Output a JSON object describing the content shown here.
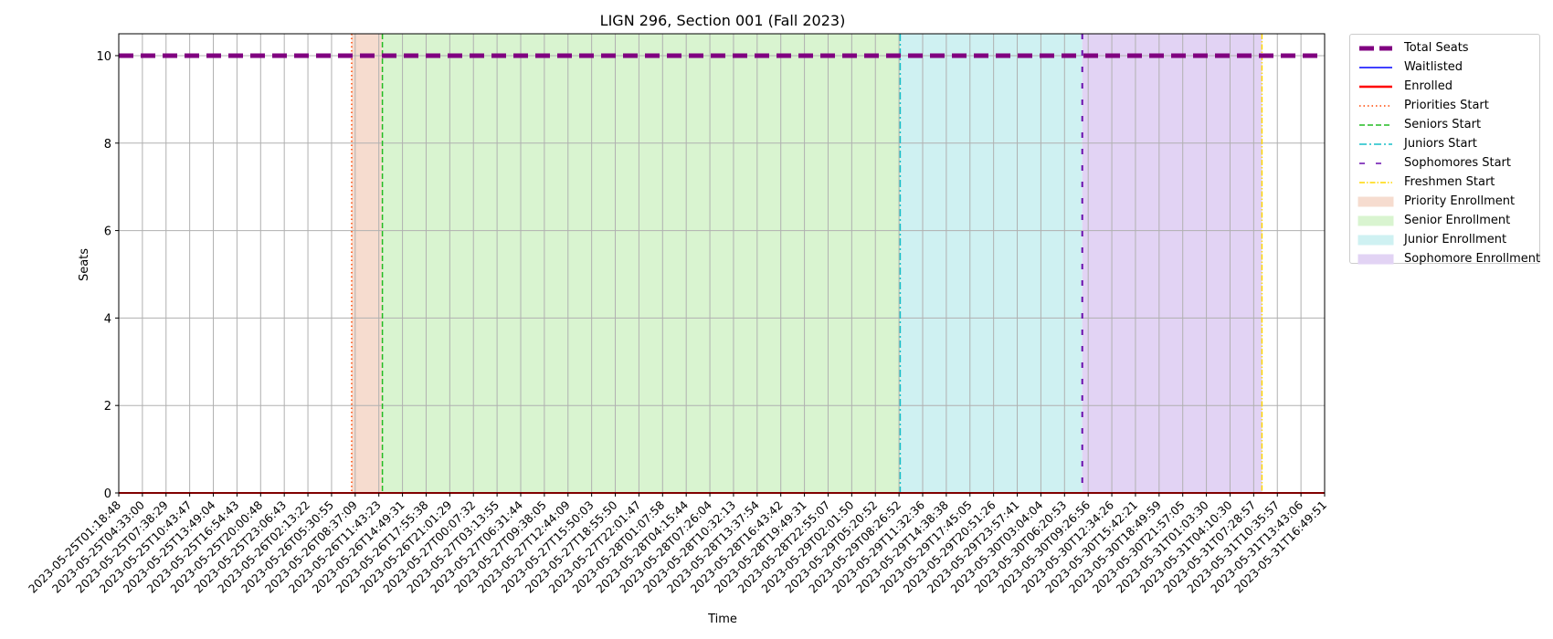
{
  "chart_data": {
    "type": "line",
    "title": "LIGN 296, Section 001 (Fall 2023)",
    "xlabel": "Time",
    "ylabel": "Seats",
    "ylim": [
      0,
      10.5
    ],
    "yticks": [
      0,
      2,
      4,
      6,
      8,
      10
    ],
    "grid": true,
    "legend_position": "outside-right-top",
    "x": [
      "2023-05-25T01:18:48",
      "2023-05-25T04:33:00",
      "2023-05-25T07:38:29",
      "2023-05-25T10:43:47",
      "2023-05-25T13:49:04",
      "2023-05-25T16:54:43",
      "2023-05-25T20:00:48",
      "2023-05-25T23:06:43",
      "2023-05-26T02:13:22",
      "2023-05-26T05:30:55",
      "2023-05-26T08:37:09",
      "2023-05-26T11:43:23",
      "2023-05-26T14:49:31",
      "2023-05-26T17:55:38",
      "2023-05-26T21:01:29",
      "2023-05-27T00:07:32",
      "2023-05-27T03:13:55",
      "2023-05-27T06:31:44",
      "2023-05-27T09:38:05",
      "2023-05-27T12:44:09",
      "2023-05-27T15:50:03",
      "2023-05-27T18:55:50",
      "2023-05-27T22:01:47",
      "2023-05-28T01:07:58",
      "2023-05-28T04:15:44",
      "2023-05-28T07:26:04",
      "2023-05-28T10:32:13",
      "2023-05-28T13:37:54",
      "2023-05-28T16:43:42",
      "2023-05-28T19:49:31",
      "2023-05-28T22:55:07",
      "2023-05-29T02:01:50",
      "2023-05-29T05:20:52",
      "2023-05-29T08:26:52",
      "2023-05-29T11:32:36",
      "2023-05-29T14:38:38",
      "2023-05-29T17:45:05",
      "2023-05-29T20:51:26",
      "2023-05-29T23:57:41",
      "2023-05-30T03:04:04",
      "2023-05-30T06:20:53",
      "2023-05-30T09:26:56",
      "2023-05-30T12:34:26",
      "2023-05-30T15:42:21",
      "2023-05-30T18:49:59",
      "2023-05-30T21:57:05",
      "2023-05-31T01:03:30",
      "2023-05-31T04:10:30",
      "2023-05-31T07:28:57",
      "2023-05-31T10:35:57",
      "2023-05-31T13:43:06",
      "2023-05-31T16:49:51"
    ],
    "series": [
      {
        "name": "Total Seats",
        "color": "#800080",
        "style": "dashed-thick",
        "values": [
          10,
          10,
          10,
          10,
          10,
          10,
          10,
          10,
          10,
          10,
          10,
          10,
          10,
          10,
          10,
          10,
          10,
          10,
          10,
          10,
          10,
          10,
          10,
          10,
          10,
          10,
          10,
          10,
          10,
          10,
          10,
          10,
          10,
          10,
          10,
          10,
          10,
          10,
          10,
          10,
          10,
          10,
          10,
          10,
          10,
          10,
          10,
          10,
          10,
          10,
          10,
          10
        ]
      },
      {
        "name": "Waitlisted",
        "color": "#0000ff",
        "style": "solid",
        "values": [
          0,
          0,
          0,
          0,
          0,
          0,
          0,
          0,
          0,
          0,
          0,
          0,
          0,
          0,
          0,
          0,
          0,
          0,
          0,
          0,
          0,
          0,
          0,
          0,
          0,
          0,
          0,
          0,
          0,
          0,
          0,
          0,
          0,
          0,
          0,
          0,
          0,
          0,
          0,
          0,
          0,
          0,
          0,
          0,
          0,
          0,
          0,
          0,
          0,
          0,
          0,
          0
        ]
      },
      {
        "name": "Enrolled",
        "color": "#ff0000",
        "style": "solid-thick",
        "values": [
          0,
          0,
          0,
          0,
          0,
          0,
          0,
          0,
          0,
          0,
          0,
          0,
          0,
          0,
          0,
          0,
          0,
          0,
          0,
          0,
          0,
          0,
          0,
          0,
          0,
          0,
          0,
          0,
          0,
          0,
          0,
          0,
          0,
          0,
          0,
          0,
          0,
          0,
          0,
          0,
          0,
          0,
          0,
          0,
          0,
          0,
          0,
          0,
          0,
          0,
          0,
          0
        ]
      }
    ],
    "vlines": [
      {
        "name": "Priorities Start",
        "color": "#ff4500",
        "style": "dotted",
        "x_index": 9.85
      },
      {
        "name": "Seniors Start",
        "color": "#22bb22",
        "style": "dashed",
        "x_index": 11.15
      },
      {
        "name": "Juniors Start",
        "color": "#17bfc8",
        "style": "dashdot",
        "x_index": 33.05
      },
      {
        "name": "Sophomores Start",
        "color": "#6a0dad",
        "style": "loosedash",
        "x_index": 40.75
      },
      {
        "name": "Freshmen Start",
        "color": "#ffd700",
        "style": "dashdot-thin",
        "x_index": 48.35
      }
    ],
    "spans": [
      {
        "name": "Priority Enrollment",
        "color": "#f6dccf",
        "start_index": 9.85,
        "end_index": 11.15
      },
      {
        "name": "Senior Enrollment",
        "color": "#d9f4d0",
        "start_index": 11.15,
        "end_index": 33.05
      },
      {
        "name": "Junior Enrollment",
        "color": "#cff1f2",
        "start_index": 33.05,
        "end_index": 40.75
      },
      {
        "name": "Sophomore Enrollment",
        "color": "#e2d3f4",
        "start_index": 40.75,
        "end_index": 48.35
      }
    ]
  }
}
